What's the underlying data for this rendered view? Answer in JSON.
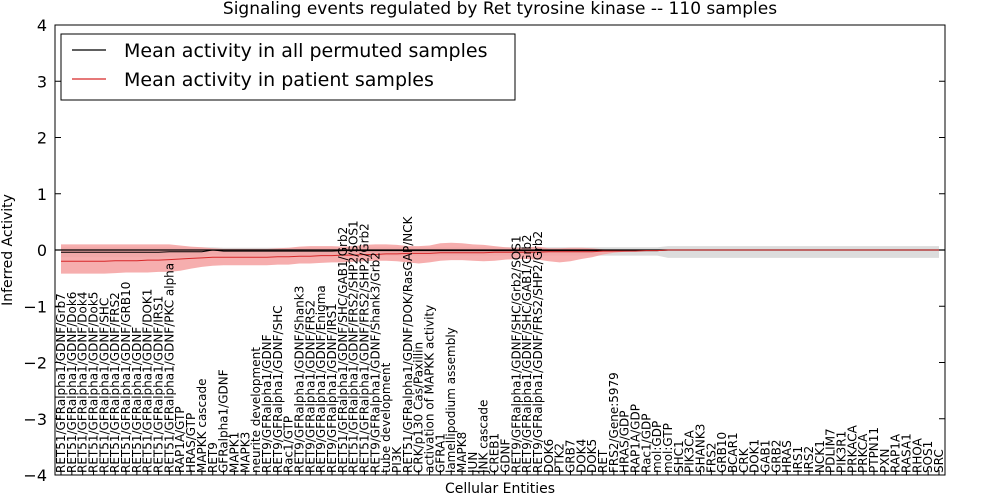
{
  "chart_data": {
    "type": "line",
    "title": "Signaling events regulated by Ret tyrosine kinase -- 110 samples",
    "xlabel": "Cellular Entities",
    "ylabel": "Inferred Activity",
    "ylim": [
      -4,
      4
    ],
    "yticks": [
      "−4",
      "−3",
      "−2",
      "−1",
      "0",
      "1",
      "2",
      "3",
      "4"
    ],
    "legend_placement": "top-left",
    "grid": false,
    "colors": {
      "permuted": "#000000",
      "patient": "#d62728",
      "patient_band": "#f4a0a0",
      "permuted_band": "#d0d0d0"
    },
    "categories": [
      "RET51/GFRalpha1/GDNF/Grb7",
      "RET51/GFRalpha1/GDNF/Dok6",
      "RET51/GFRalpha1/GDNF/Dok4",
      "RET51/GFRalpha1/GDNF/Dok5",
      "RET51/GFRalpha1/GDNF/SHC",
      "RET51/GFRalpha1/GDNF/FRS2",
      "RET51/GFRalpha1/GDNF/GRB10",
      "RET51/GFRalpha1/GDNF",
      "RET51/GFRalpha1/GDNF/DOK1",
      "RET51/GFRalpha1/GDNF/IRS1",
      "RET51/GFRalpha1/GDNF/PKC alpha",
      "RAP1A/GTP",
      "HRAS/GTP",
      "MAPKK cascade",
      "RET9",
      "GFRalpha1/GDNF",
      "MAPK1",
      "MAPK3",
      "neurite development",
      "RET9/GFRalpha1/GDNF",
      "RET9/GFRalpha1/GDNF/SHC",
      "Rac1/GTP",
      "RET9/GFRalpha1/GDNF/Shank3",
      "RET9/GFRalpha1/GDNF/FRS2",
      "RET9/GFRalpha1/GDNF/Enigma",
      "RET9/GFRalpha1/GDNF/IRS1",
      "RET51/GFRalpha1/GDNF/SHC/GAB1/Grb2",
      "RET51/GFRalpha1/GDNF/FRS2/SHP2/SOS1",
      "RET51/GFRalpha1/GDNF/FRS2/SHP2/Grb2",
      "RET9/GFRalpha1/GDNF/Shank3/Grb2",
      "tube development",
      "PI3K",
      "RET51/GFRalpha1/GDNF/DOK/RasGAP/NCK",
      "CRK/p130 Cas/Paxillin",
      "activation of MAPKK activity",
      "GFRA1",
      "lamellipodium assembly",
      "MAPK8",
      "JUN",
      "JNK cascade",
      "CREB1",
      "GDNF",
      "RET9/GFRalpha1/GDNF/SHC/Grb2/SOS1",
      "RET9/GFRalpha1/GDNF/SHC/GAB1/Grb2",
      "RET9/GFRalpha1/GDNF/FRS2/SHP2/Grb2",
      "DOK6",
      "PTK2",
      "GRB7",
      "DOK4",
      "DOK5",
      "RET",
      "FRS2/Gene:5979",
      "HRAS/GDP",
      "RAP1A/GDP",
      "Rac1/GDP",
      "mol:GDP",
      "mol:GTP",
      "SHC1",
      "PIK3CA",
      "SHANK3",
      "FRS2",
      "GRB10",
      "BCAR1",
      "CRK",
      "DOK1",
      "GAB1",
      "GRB2",
      "HRAS",
      "IRS1",
      "IRS2",
      "NCK1",
      "PDLIM7",
      "PIK3R1",
      "PRKACA",
      "PRKCA",
      "PTPN11",
      "PXN",
      "RAP1A",
      "RASA1",
      "RHOA",
      "SOS1",
      "SRC"
    ],
    "series": [
      {
        "name": "Mean activity in all permuted samples",
        "values": [
          -0.04,
          -0.04,
          -0.04,
          -0.04,
          -0.04,
          -0.04,
          -0.04,
          -0.04,
          -0.04,
          -0.04,
          -0.03,
          -0.03,
          -0.03,
          -0.03,
          0.0,
          -0.02,
          -0.02,
          -0.02,
          -0.02,
          -0.02,
          -0.02,
          -0.02,
          -0.02,
          -0.02,
          -0.02,
          -0.02,
          -0.01,
          -0.01,
          -0.01,
          -0.01,
          -0.01,
          -0.01,
          -0.01,
          -0.01,
          -0.01,
          -0.01,
          -0.01,
          -0.01,
          -0.01,
          -0.01,
          -0.01,
          -0.01,
          -0.01,
          -0.01,
          -0.01,
          -0.01,
          -0.01,
          -0.01,
          -0.01,
          -0.01,
          -0.01,
          -0.01,
          -0.01,
          -0.01,
          -0.01,
          -0.01,
          0.0,
          0.0,
          0.0,
          0.0,
          0.0,
          0.0,
          0.0,
          0.0,
          0.0,
          0.0,
          0.0,
          0.0,
          0.0,
          0.0,
          0.0,
          0.0,
          0.0,
          0.0,
          0.0,
          0.0,
          0.0,
          0.0,
          0.0,
          0.0,
          0.0,
          0.0
        ]
      },
      {
        "name": "Mean activity in patient samples",
        "values": [
          -0.2,
          -0.2,
          -0.2,
          -0.2,
          -0.2,
          -0.19,
          -0.19,
          -0.19,
          -0.18,
          -0.18,
          -0.17,
          -0.16,
          -0.15,
          -0.14,
          -0.13,
          -0.13,
          -0.13,
          -0.13,
          -0.13,
          -0.13,
          -0.12,
          -0.12,
          -0.11,
          -0.11,
          -0.1,
          -0.1,
          -0.09,
          -0.09,
          -0.08,
          -0.08,
          -0.07,
          -0.07,
          -0.06,
          -0.06,
          -0.06,
          -0.05,
          -0.05,
          -0.05,
          -0.05,
          -0.05,
          -0.04,
          -0.04,
          -0.04,
          -0.04,
          -0.04,
          -0.03,
          -0.03,
          -0.03,
          -0.03,
          -0.03,
          -0.02,
          -0.02,
          -0.02,
          -0.02,
          -0.01,
          -0.01,
          0.0,
          0.0,
          0.0,
          0.0,
          0.0,
          0.0,
          0.0,
          0.0,
          0.0,
          0.0,
          0.0,
          0.0,
          0.0,
          0.0,
          0.0,
          0.0,
          0.0,
          0.0,
          0.0,
          0.0,
          0.0,
          0.0,
          0.0,
          0.0,
          0.0,
          0.0
        ]
      }
    ],
    "bands": {
      "permuted_high": [
        0.05,
        0.05,
        0.05,
        0.05,
        0.05,
        0.05,
        0.05,
        0.05,
        0.05,
        0.05,
        0.05,
        0.05,
        0.05,
        0.05,
        0.05,
        0.04,
        0.04,
        0.04,
        0.04,
        0.04,
        0.04,
        0.04,
        0.04,
        0.04,
        0.04,
        0.04,
        0.05,
        0.05,
        0.05,
        0.05,
        0.05,
        0.05,
        0.05,
        0.05,
        0.05,
        0.05,
        0.05,
        0.05,
        0.05,
        0.05,
        0.05,
        0.05,
        0.05,
        0.05,
        0.05,
        0.05,
        0.05,
        0.05,
        0.05,
        0.05,
        0.05,
        0.05,
        0.05,
        0.05,
        0.05,
        0.05,
        0.07,
        0.07,
        0.07,
        0.07,
        0.07,
        0.07,
        0.07,
        0.07,
        0.07,
        0.07,
        0.07,
        0.07,
        0.07,
        0.07,
        0.07,
        0.07,
        0.07,
        0.07,
        0.07,
        0.07,
        0.07,
        0.07,
        0.07,
        0.07,
        0.07,
        0.07
      ],
      "permuted_low": [
        -0.13,
        -0.13,
        -0.13,
        -0.13,
        -0.13,
        -0.13,
        -0.13,
        -0.13,
        -0.13,
        -0.13,
        -0.12,
        -0.12,
        -0.12,
        -0.12,
        -0.08,
        -0.1,
        -0.1,
        -0.1,
        -0.1,
        -0.1,
        -0.1,
        -0.1,
        -0.1,
        -0.1,
        -0.1,
        -0.1,
        -0.1,
        -0.1,
        -0.1,
        -0.1,
        -0.1,
        -0.1,
        -0.1,
        -0.1,
        -0.1,
        -0.1,
        -0.1,
        -0.1,
        -0.1,
        -0.1,
        -0.1,
        -0.1,
        -0.1,
        -0.1,
        -0.1,
        -0.1,
        -0.1,
        -0.1,
        -0.1,
        -0.1,
        -0.1,
        -0.1,
        -0.1,
        -0.1,
        -0.1,
        -0.1,
        -0.14,
        -0.14,
        -0.14,
        -0.14,
        -0.14,
        -0.14,
        -0.14,
        -0.14,
        -0.14,
        -0.14,
        -0.14,
        -0.14,
        -0.14,
        -0.14,
        -0.14,
        -0.14,
        -0.14,
        -0.14,
        -0.14,
        -0.14,
        -0.14,
        -0.14,
        -0.14,
        -0.14,
        -0.14,
        -0.14
      ],
      "patient_high": [
        0.1,
        0.1,
        0.1,
        0.1,
        0.1,
        0.1,
        0.1,
        0.1,
        0.1,
        0.1,
        0.1,
        0.08,
        0.06,
        0.05,
        0.03,
        0.02,
        0.02,
        0.02,
        0.02,
        0.02,
        0.03,
        0.04,
        0.06,
        0.07,
        0.07,
        0.07,
        0.06,
        0.07,
        0.09,
        0.1,
        0.1,
        0.09,
        0.07,
        0.07,
        0.08,
        0.12,
        0.13,
        0.12,
        0.1,
        0.09,
        0.07,
        0.05,
        0.04,
        0.05,
        0.06,
        0.03,
        0.03,
        0.04,
        0.04,
        0.03,
        0.01,
        0.0,
        0.0,
        0.0,
        0.0,
        0.0,
        0.0,
        0.0,
        0.0,
        0.0,
        0.0,
        0.0,
        0.0,
        0.0,
        0.0,
        0.0,
        0.0,
        0.0,
        0.0,
        0.0,
        0.0,
        0.0,
        0.0,
        0.0,
        0.0,
        0.0,
        0.0,
        0.0,
        0.0,
        0.0,
        0.0,
        0.0
      ],
      "patient_low": [
        -0.42,
        -0.42,
        -0.42,
        -0.42,
        -0.42,
        -0.41,
        -0.4,
        -0.4,
        -0.4,
        -0.39,
        -0.39,
        -0.37,
        -0.33,
        -0.3,
        -0.28,
        -0.27,
        -0.27,
        -0.27,
        -0.27,
        -0.27,
        -0.26,
        -0.26,
        -0.24,
        -0.24,
        -0.23,
        -0.22,
        -0.22,
        -0.21,
        -0.2,
        -0.19,
        -0.19,
        -0.2,
        -0.22,
        -0.24,
        -0.22,
        -0.19,
        -0.18,
        -0.18,
        -0.19,
        -0.2,
        -0.19,
        -0.17,
        -0.16,
        -0.16,
        -0.17,
        -0.2,
        -0.22,
        -0.2,
        -0.16,
        -0.13,
        -0.08,
        -0.05,
        -0.03,
        -0.02,
        -0.01,
        -0.01,
        0.0,
        0.0,
        0.0,
        0.0,
        0.0,
        0.0,
        0.0,
        0.0,
        0.0,
        0.0,
        0.0,
        0.0,
        0.0,
        0.0,
        0.0,
        0.0,
        0.0,
        0.0,
        0.0,
        0.0,
        0.0,
        0.0,
        0.0,
        0.0,
        0.0,
        0.0
      ]
    }
  }
}
